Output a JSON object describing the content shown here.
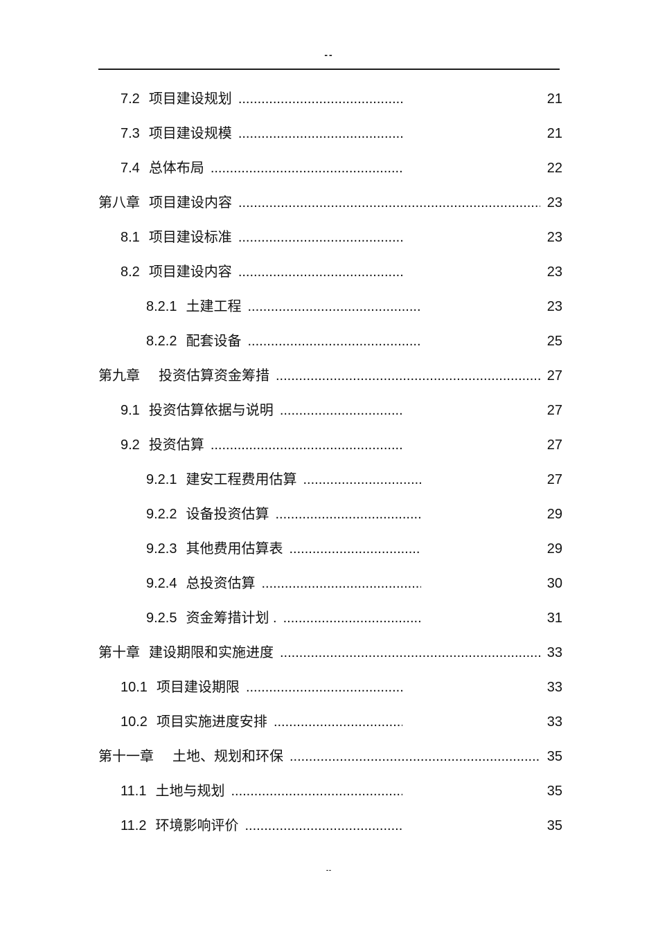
{
  "page": {
    "header_mark": "--",
    "footer_mark": "--"
  },
  "toc": {
    "leader_char": ".",
    "entries": [
      {
        "level": 2,
        "number": "7.2",
        "title": "项目建设规划",
        "page": "21"
      },
      {
        "level": 2,
        "number": "7.3",
        "title": "项目建设规模",
        "page": "21"
      },
      {
        "level": 2,
        "number": "7.4",
        "title": "总体布局",
        "page": "22"
      },
      {
        "level": 1,
        "number": "第八章",
        "title": "项目建设内容",
        "page": "23"
      },
      {
        "level": 2,
        "number": "8.1",
        "title": "项目建设标准",
        "page": "23"
      },
      {
        "level": 2,
        "number": "8.2",
        "title": "项目建设内容",
        "page": "23"
      },
      {
        "level": 3,
        "number": "8.2.1",
        "title": "土建工程",
        "page": "23"
      },
      {
        "level": 3,
        "number": "8.2.2",
        "title": "配套设备",
        "page": "25"
      },
      {
        "level": 1,
        "number": "第九章",
        "title": "投资估算资金筹措",
        "page": "27",
        "wide": true
      },
      {
        "level": 2,
        "number": "9.1",
        "title": "投资估算依据与说明",
        "page": "27"
      },
      {
        "level": 2,
        "number": "9.2",
        "title": "投资估算",
        "page": "27"
      },
      {
        "level": 3,
        "number": "9.2.1",
        "title": "建安工程费用估算",
        "page": "27"
      },
      {
        "level": 3,
        "number": "9.2.2",
        "title": "设备投资估算",
        "page": "29"
      },
      {
        "level": 3,
        "number": "9.2.3",
        "title": "其他费用估算表",
        "page": "29"
      },
      {
        "level": 3,
        "number": "9.2.4",
        "title": "总投资估算",
        "page": "30"
      },
      {
        "level": 3,
        "number": "9.2.5",
        "title": "资金筹措计划 .",
        "page": "31"
      },
      {
        "level": 1,
        "number": "第十章",
        "title": "建设期限和实施进度",
        "page": "33"
      },
      {
        "level": 2,
        "number": "10.1",
        "title": "项目建设期限",
        "page": "33"
      },
      {
        "level": 2,
        "number": "10.2",
        "title": "项目实施进度安排",
        "page": "33"
      },
      {
        "level": 1,
        "number": "第十一章",
        "title": "土地、规划和环保",
        "page": "35",
        "wide": true
      },
      {
        "level": 2,
        "number": "11.1",
        "title": "土地与规划",
        "page": "35"
      },
      {
        "level": 2,
        "number": "11.2",
        "title": "环境影响评价",
        "page": "35"
      }
    ]
  }
}
